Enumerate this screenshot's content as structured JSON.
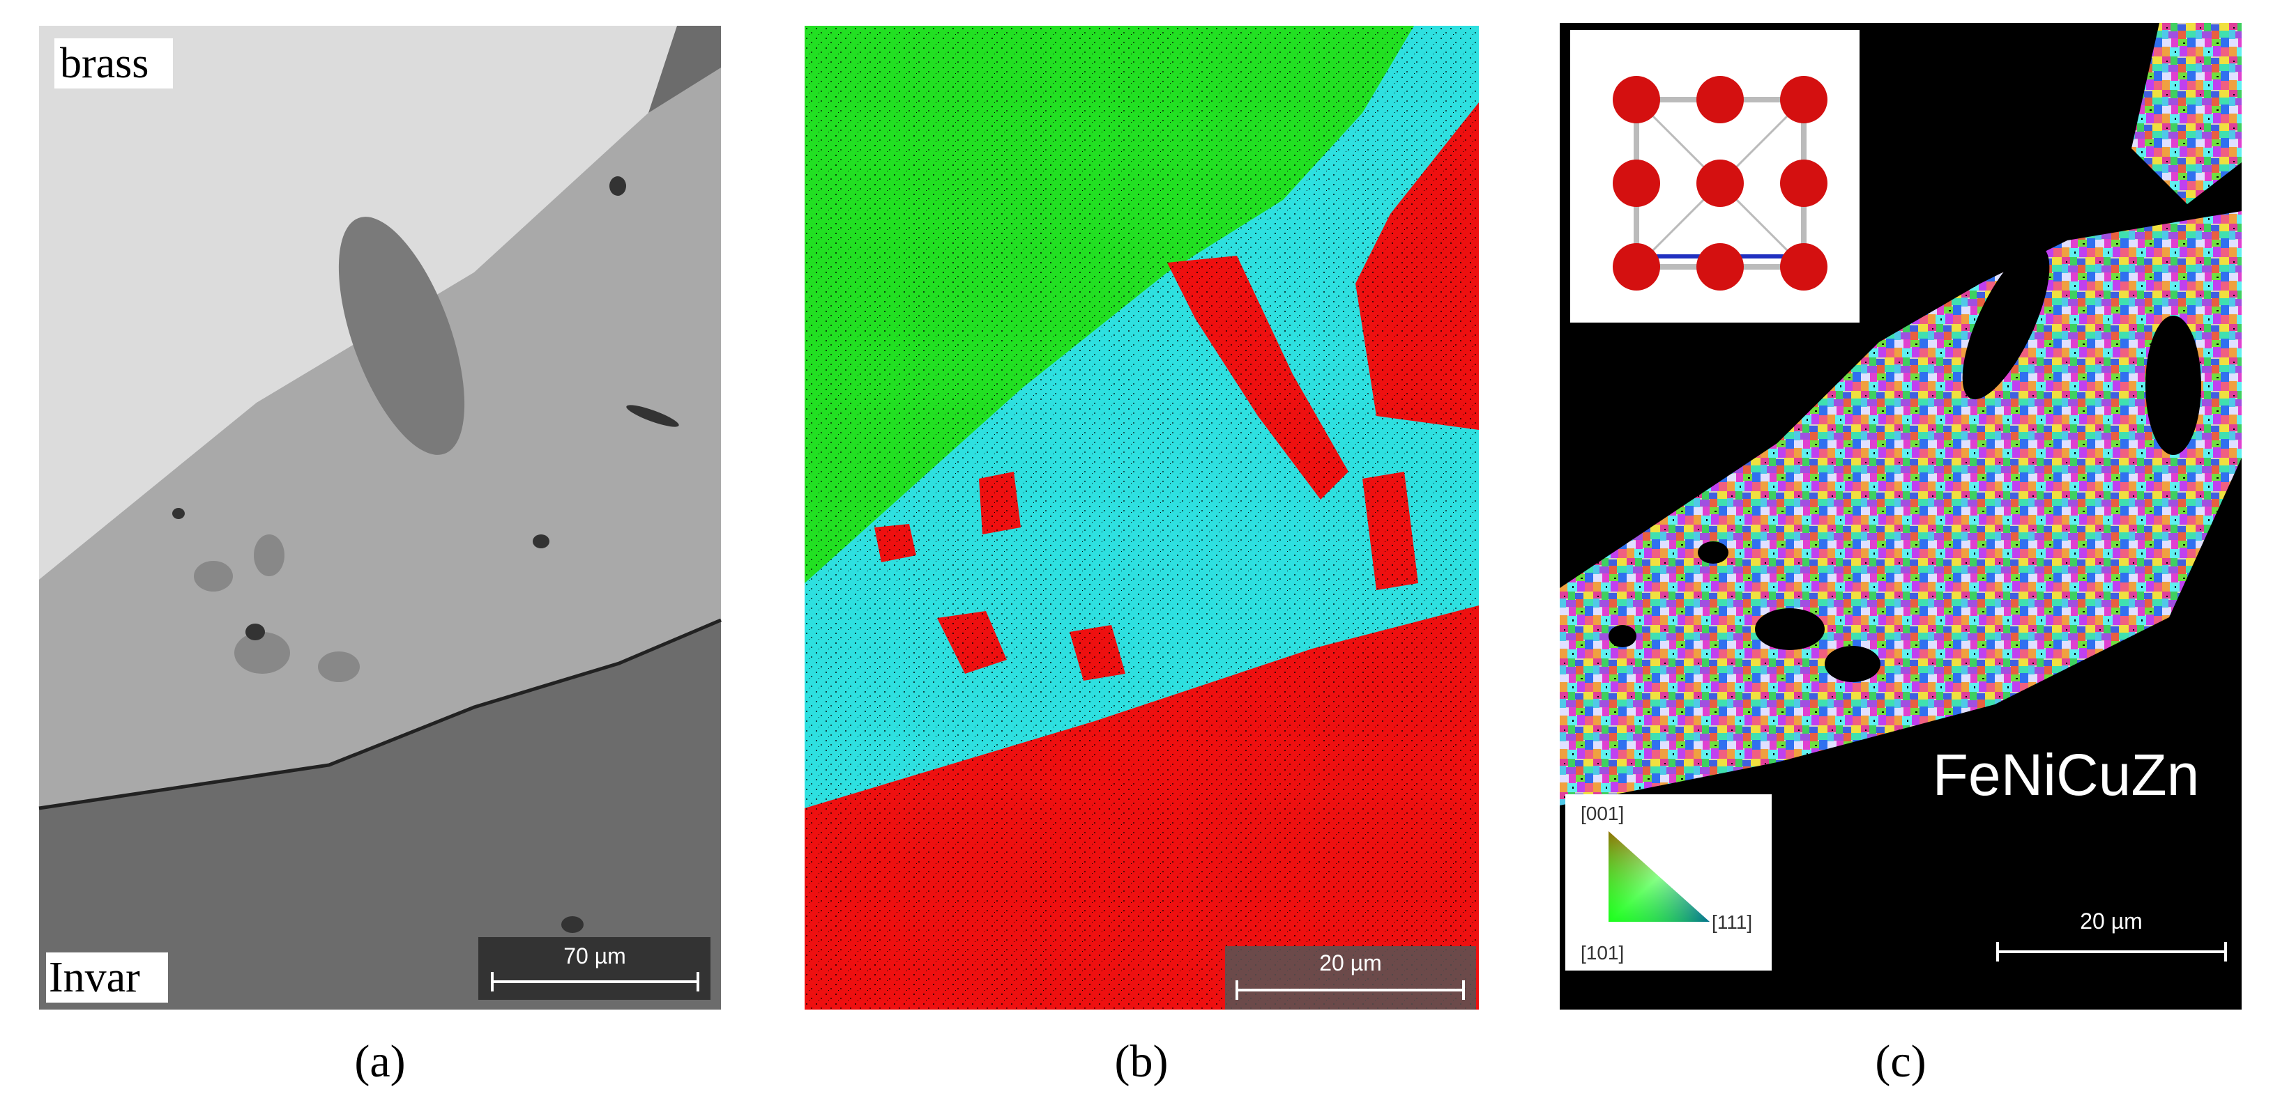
{
  "panels": [
    {
      "label": "(a)",
      "top_text": "brass",
      "bottom_text": "Invar",
      "scale_bar": "70 µm"
    },
    {
      "label": "(b)",
      "scale_bar": "20 µm"
    },
    {
      "label": "(c)",
      "scale_bar": "20 µm",
      "phase": "FeNiCuZn",
      "ipf_key": [
        "[001]",
        "[101]",
        "[111]"
      ]
    }
  ]
}
